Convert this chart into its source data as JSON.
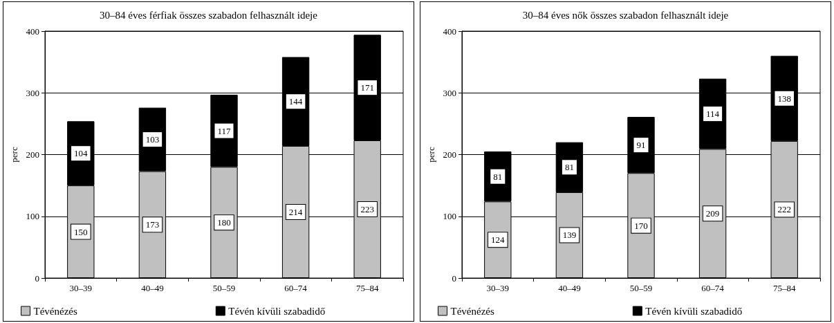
{
  "chart_data": [
    {
      "type": "bar",
      "title": "30–84 éves férfiak összes szabadon felhasznált ideje",
      "ylabel": "perc",
      "categories": [
        "30–39",
        "40–49",
        "50–59",
        "60–74",
        "75–84"
      ],
      "stacked": true,
      "data_labels": true,
      "grid": "y",
      "legend": "bottom",
      "ylim": [
        0,
        400
      ],
      "yticks": [
        0,
        100,
        200,
        300,
        400
      ],
      "series": [
        {
          "name": "Tévénézés",
          "color": "#c0c0c0",
          "values": [
            150,
            173,
            180,
            214,
            223
          ]
        },
        {
          "name": "Tévén kívüli szabadidő",
          "color": "#000000",
          "values": [
            104,
            103,
            117,
            144,
            171
          ]
        }
      ]
    },
    {
      "type": "bar",
      "title": "30–84 éves nők összes szabadon felhasznált ideje",
      "ylabel": "perc",
      "categories": [
        "30–39",
        "40–49",
        "50–59",
        "60–74",
        "75–84"
      ],
      "stacked": true,
      "data_labels": true,
      "grid": "y",
      "legend": "bottom",
      "ylim": [
        0,
        400
      ],
      "yticks": [
        0,
        100,
        200,
        300,
        400
      ],
      "series": [
        {
          "name": "Tévénézés",
          "color": "#c0c0c0",
          "values": [
            124,
            139,
            170,
            209,
            222
          ]
        },
        {
          "name": "Tévén kívüli szabadidő",
          "color": "#000000",
          "values": [
            81,
            81,
            91,
            114,
            138
          ]
        }
      ]
    }
  ]
}
